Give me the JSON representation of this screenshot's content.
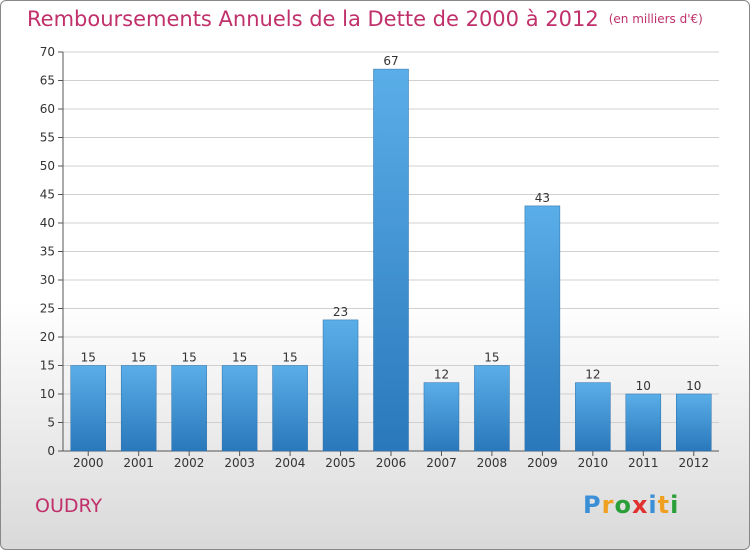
{
  "title": "Remboursements Annuels de la Dette de 2000 à 2012",
  "subtitle": "(en milliers d'€)",
  "commune": "OUDRY",
  "logo": {
    "letters": [
      "P",
      "r",
      "o",
      "x",
      "i",
      "t",
      "i"
    ],
    "colors": [
      "#3a8fd6",
      "#f0a020",
      "#2a9f3a",
      "#e03030",
      "#3a8fd6",
      "#f0a020",
      "#2a9f3a"
    ]
  },
  "colors": {
    "bar_top": "#5aaee8",
    "bar_bottom": "#2a78bb",
    "text_accent": "#c0306a"
  },
  "chart_data": {
    "type": "bar",
    "categories": [
      "2000",
      "2001",
      "2002",
      "2003",
      "2004",
      "2005",
      "2006",
      "2007",
      "2008",
      "2009",
      "2010",
      "2011",
      "2012"
    ],
    "values": [
      15,
      15,
      15,
      15,
      15,
      23,
      67,
      12,
      15,
      43,
      12,
      10,
      10
    ],
    "data_labels": [
      "15",
      "15",
      "15",
      "15",
      "15",
      "23",
      "67",
      "12",
      "15",
      "43",
      "12",
      "10",
      "10"
    ],
    "title": "Remboursements Annuels de la Dette de 2000 à 2012",
    "xlabel": "",
    "ylabel": "",
    "ylim": [
      0,
      70
    ],
    "yticks": [
      0,
      5,
      10,
      15,
      20,
      25,
      30,
      35,
      40,
      45,
      50,
      55,
      60,
      65,
      70
    ],
    "grid": true
  }
}
